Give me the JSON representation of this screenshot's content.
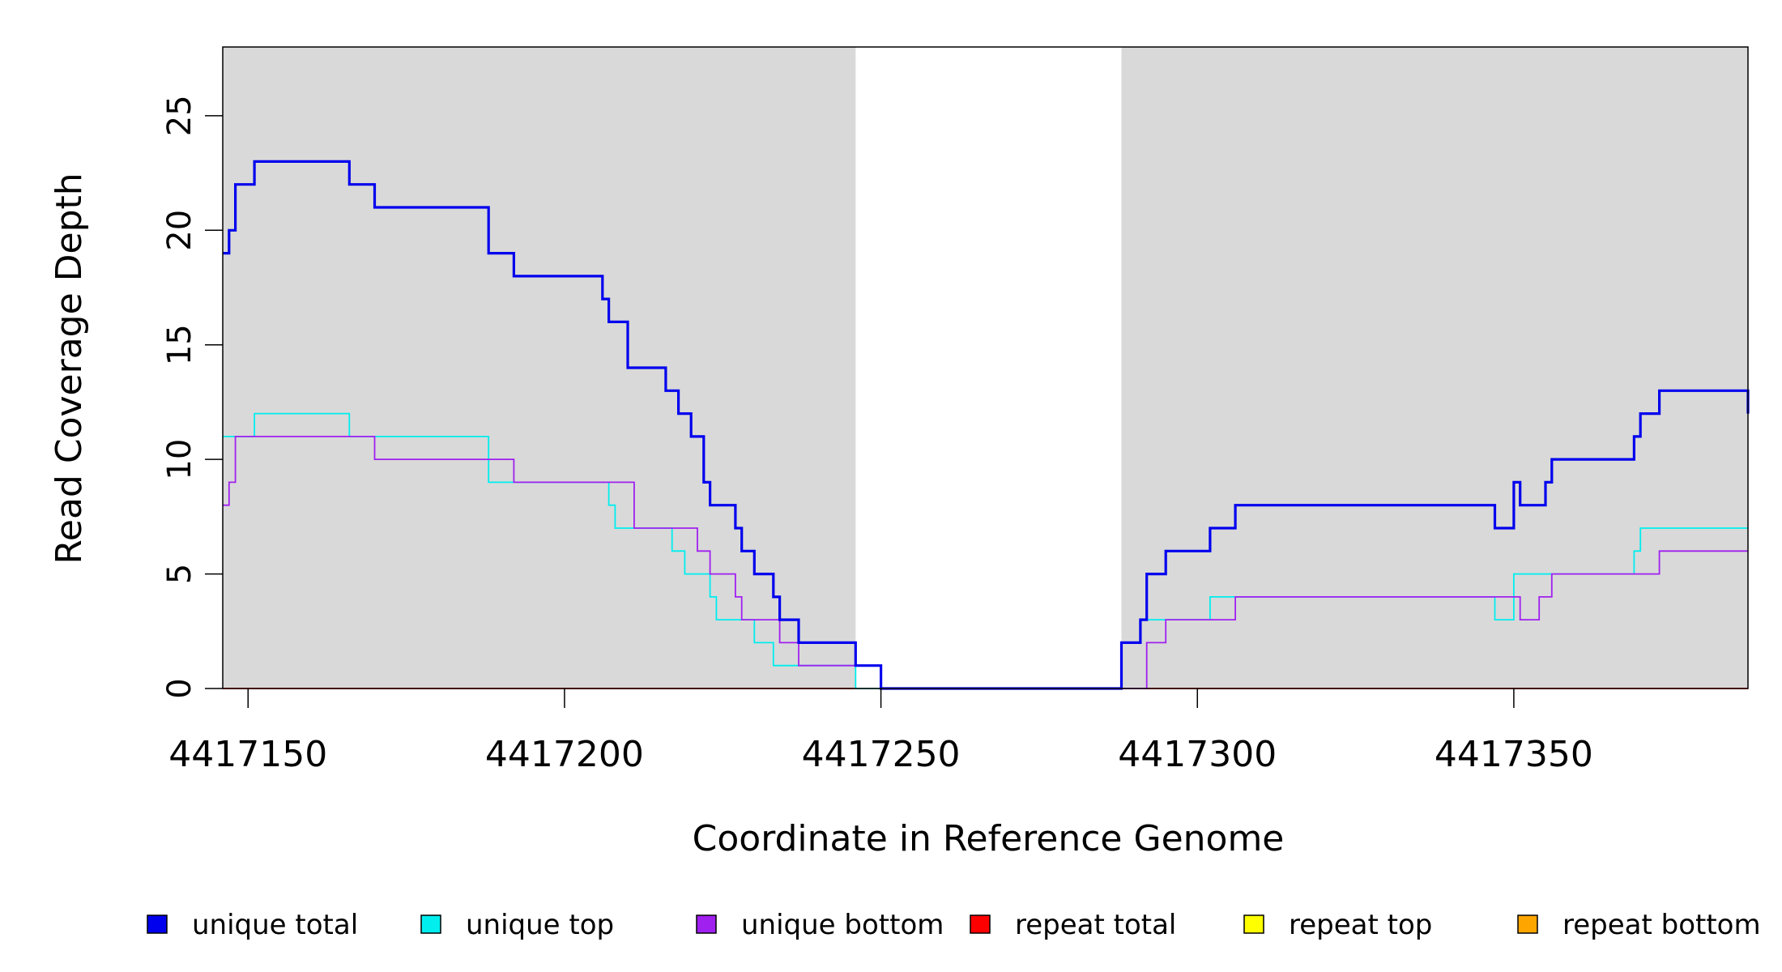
{
  "chart_data": {
    "type": "line",
    "title": "",
    "xlabel": "Coordinate in Reference Genome",
    "ylabel": "Read Coverage Depth",
    "xlim": [
      4417146,
      4417387
    ],
    "ylim": [
      0,
      28
    ],
    "x_ticks": [
      4417150,
      4417200,
      4417250,
      4417300,
      4417350
    ],
    "y_ticks": [
      0,
      5,
      10,
      15,
      20,
      25
    ],
    "x_tick_labels": [
      "4417150",
      "4417200",
      "4417250",
      "4417300",
      "4417350"
    ],
    "y_tick_labels": [
      "0",
      "5",
      "10",
      "15",
      "20",
      "25"
    ],
    "grid": false,
    "legend_position": "bottom",
    "shaded_regions": [
      {
        "x_start": 4417146,
        "x_end": 4417246,
        "color": "#d9d9d9"
      },
      {
        "x_start": 4417288,
        "x_end": 4417387,
        "color": "#d9d9d9"
      }
    ],
    "series": [
      {
        "name": "unique total",
        "color": "#0000ee",
        "step": true,
        "x": [
          4417146,
          4417147,
          4417148,
          4417151,
          4417166,
          4417170,
          4417188,
          4417192,
          4417206,
          4417207,
          4417210,
          4417216,
          4417218,
          4417220,
          4417222,
          4417223,
          4417227,
          4417228,
          4417230,
          4417233,
          4417234,
          4417237,
          4417246,
          4417250,
          4417288,
          4417291,
          4417292,
          4417295,
          4417302,
          4417306,
          4417347,
          4417350,
          4417351,
          4417355,
          4417356,
          4417369,
          4417370,
          4417373,
          4417387
        ],
        "y": [
          19,
          20,
          22,
          23,
          22,
          21,
          19,
          18,
          17,
          16,
          14,
          13,
          12,
          11,
          9,
          8,
          7,
          6,
          5,
          4,
          3,
          2,
          1,
          0,
          2,
          3,
          5,
          6,
          7,
          8,
          7,
          9,
          8,
          9,
          10,
          11,
          12,
          13,
          12
        ]
      },
      {
        "name": "unique top",
        "color": "#00eeee",
        "step": true,
        "x": [
          4417146,
          4417151,
          4417166,
          4417188,
          4417207,
          4417208,
          4417217,
          4417219,
          4417223,
          4417224,
          4417230,
          4417233,
          4417237,
          4417246,
          4417288,
          4417291,
          4417302,
          4417347,
          4417350,
          4417369,
          4417370,
          4417387
        ],
        "y": [
          11,
          12,
          11,
          9,
          8,
          7,
          6,
          5,
          4,
          3,
          2,
          1,
          1,
          0,
          2,
          3,
          4,
          3,
          5,
          6,
          7,
          7
        ]
      },
      {
        "name": "unique bottom",
        "color": "#a020f0",
        "step": true,
        "x": [
          4417146,
          4417147,
          4417148,
          4417170,
          4417192,
          4417211,
          4417221,
          4417223,
          4417227,
          4417228,
          4417234,
          4417237,
          4417246,
          4417250,
          4417292,
          4417295,
          4417306,
          4417351,
          4417354,
          4417356,
          4417373,
          4417387
        ],
        "y": [
          8,
          9,
          11,
          10,
          9,
          7,
          6,
          5,
          4,
          3,
          2,
          1,
          1,
          0,
          2,
          3,
          4,
          3,
          4,
          5,
          6,
          6
        ]
      },
      {
        "name": "repeat total",
        "color": "#ff0000",
        "step": true,
        "x": [
          4417146,
          4417387
        ],
        "y": [
          0,
          0
        ]
      },
      {
        "name": "repeat top",
        "color": "#ffff00",
        "step": true,
        "x": [
          4417146,
          4417387
        ],
        "y": [
          0,
          0
        ]
      },
      {
        "name": "repeat bottom",
        "color": "#ffa500",
        "step": true,
        "x": [
          4417146,
          4417387
        ],
        "y": [
          0,
          0
        ]
      }
    ]
  }
}
